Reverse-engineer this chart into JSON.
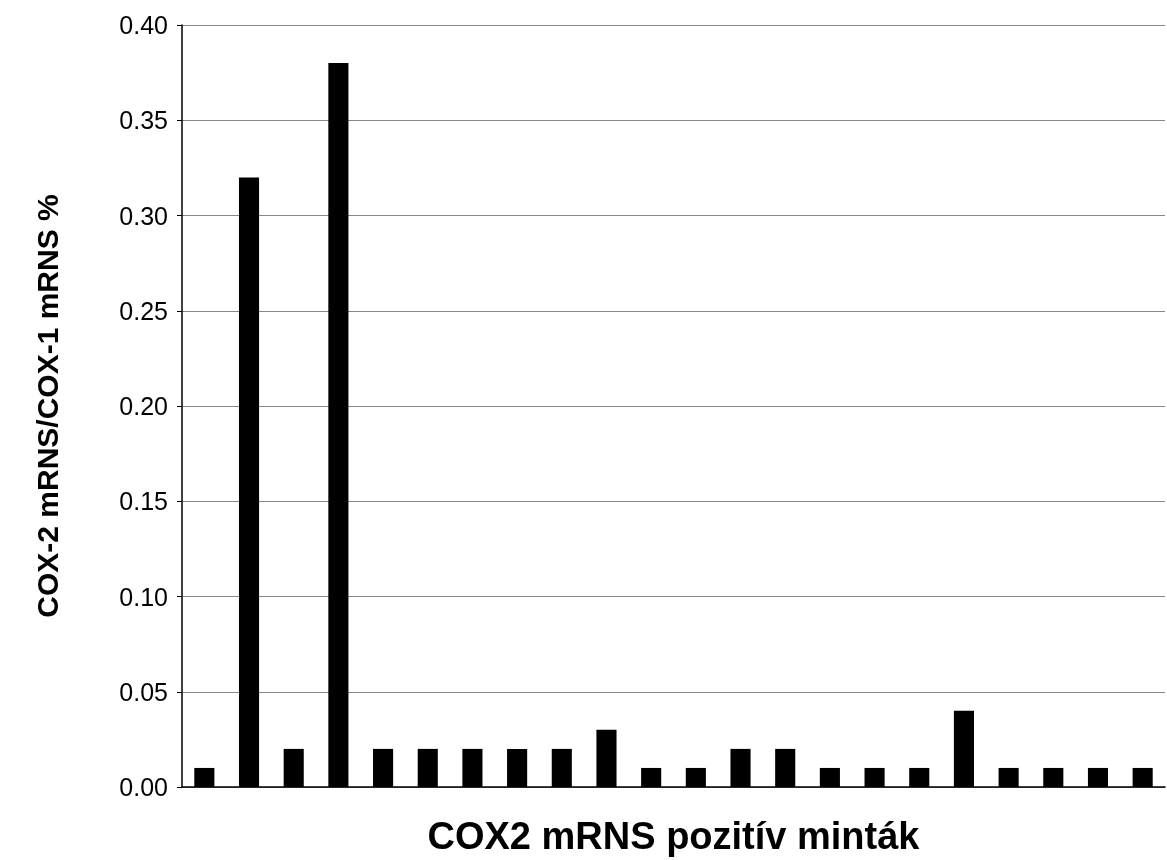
{
  "chart_data": {
    "type": "bar",
    "xlabel": "COX2 mRNS pozitív minták",
    "ylabel": "COX-2 mRNS/COX-1 mRNS %",
    "categories": [
      null,
      null,
      null,
      null,
      null,
      null,
      null,
      null,
      null,
      null,
      null,
      null,
      null,
      null,
      null,
      null,
      null,
      null,
      null,
      null,
      null,
      null
    ],
    "values": [
      0.01,
      0.32,
      0.02,
      0.38,
      0.02,
      0.02,
      0.02,
      0.02,
      0.02,
      0.03,
      0.01,
      0.01,
      0.02,
      0.02,
      0.01,
      0.01,
      0.01,
      0.04,
      0.01,
      0.01,
      0.01,
      0.01
    ],
    "color": "#000000",
    "ylim": [
      0,
      0.4
    ],
    "yticks": [
      {
        "value": 0,
        "label": "0.00"
      },
      {
        "value": 0.05,
        "label": "0.05"
      },
      {
        "value": 0.1,
        "label": "0.10"
      },
      {
        "value": 0.15,
        "label": "0.15"
      },
      {
        "value": 0.2,
        "label": "0.20"
      },
      {
        "value": 0.25,
        "label": "0.25"
      },
      {
        "value": 0.3,
        "label": "0.30"
      },
      {
        "value": 0.35,
        "label": "0.35"
      },
      {
        "value": 0.4,
        "label": "0.40"
      }
    ],
    "grid": "y"
  }
}
